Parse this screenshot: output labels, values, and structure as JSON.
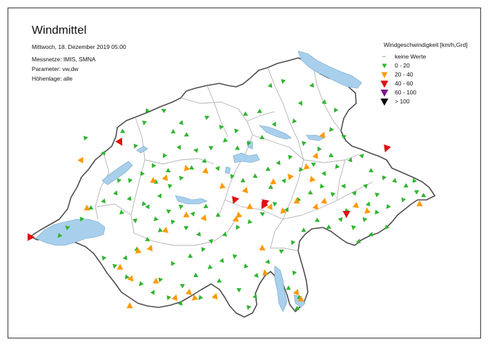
{
  "title": "Windmittel",
  "date": "Mittwoch, 18. Dezember 2019 05:00",
  "networks": "Messnetze: IMIS, SMNA",
  "parameter": "Parameter: vw,dw",
  "altitude": "Höhenlage: alle",
  "legend": {
    "title": "Windgeschwindigkeit [km/h,Grd]",
    "classes": [
      {
        "label": "keine Werte",
        "color": "#999999",
        "symbol": "dash"
      },
      {
        "label": "0 - 20",
        "color": "#2fb52f",
        "symbol": "arrow-small"
      },
      {
        "label": "20 - 40",
        "color": "#ff9900",
        "symbol": "arrow-medium"
      },
      {
        "label": "40 - 60",
        "color": "#e01010",
        "symbol": "arrow-large"
      },
      {
        "label": "60 - 100",
        "color": "#7a1a8a",
        "symbol": "arrow-large"
      },
      {
        "label": "> 100",
        "color": "#000000",
        "symbol": "arrow-large"
      }
    ]
  },
  "colors": {
    "lake": "#a8d0ec",
    "border": "#4a4a4a",
    "canton_lines": "#b0b0b0",
    "land": "#ffffff"
  }
}
